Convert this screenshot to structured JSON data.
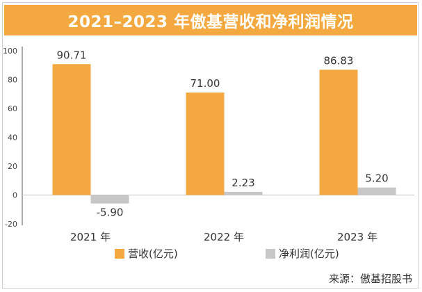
{
  "title": "2021–2023 年傲基营收和净利润情况",
  "source": "来源：傲基招股书",
  "colors": {
    "accent": "#f4a940",
    "revenue": "#f4a940",
    "net_profit": "#c7c7c7",
    "text": "#333333"
  },
  "chart_data": {
    "type": "bar",
    "title": "2021–2023 年傲基营收和净利润情况",
    "categories": [
      "2021 年",
      "2022 年",
      "2023 年"
    ],
    "series": [
      {
        "name": "营收(亿元)",
        "values": [
          90.71,
          71.0,
          86.83
        ],
        "labels": [
          "90.71",
          "71.00",
          "86.83"
        ]
      },
      {
        "name": "净利润(亿元)",
        "values": [
          -5.9,
          2.23,
          5.2
        ],
        "labels": [
          "-5.90",
          "2.23",
          "5.20"
        ]
      }
    ],
    "ylim": [
      -20,
      100
    ],
    "yticks": [
      -20,
      0,
      20,
      40,
      60,
      80,
      100
    ],
    "xlabel": "",
    "ylabel": "",
    "grid": false,
    "legend": "bottom"
  }
}
